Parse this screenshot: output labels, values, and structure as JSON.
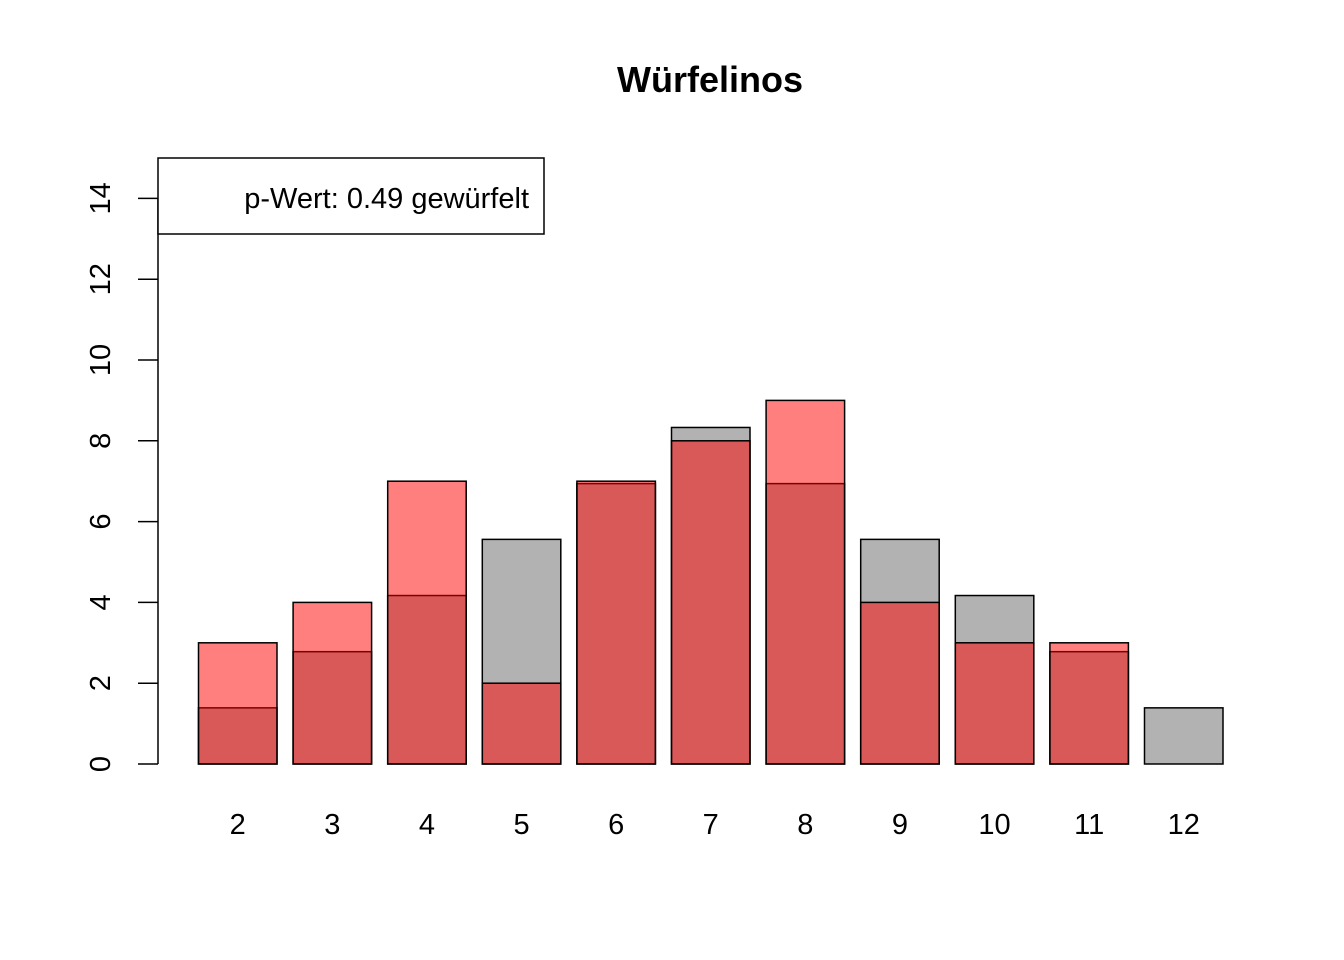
{
  "chart_data": {
    "type": "bar",
    "title": "Würfelinos",
    "xlabel": "",
    "ylabel": "",
    "categories": [
      "2",
      "3",
      "4",
      "5",
      "6",
      "7",
      "8",
      "9",
      "10",
      "11",
      "12"
    ],
    "ylim": [
      0,
      15
    ],
    "yticks": [
      0,
      2,
      4,
      6,
      8,
      10,
      12,
      14
    ],
    "grid": false,
    "legend_position": "top-left",
    "series": [
      {
        "values": [
          1.39,
          2.78,
          4.17,
          5.56,
          6.94,
          8.33,
          6.94,
          5.56,
          4.17,
          2.78,
          1.39
        ],
        "color": "#b2b2b2"
      },
      {
        "values": [
          3,
          4,
          7,
          2,
          7,
          8,
          9,
          4,
          3,
          3,
          0
        ],
        "color": "#ff0000",
        "opacity": 0.5
      }
    ],
    "annotation": "p-Wert: 0.49 gewürfelt"
  }
}
